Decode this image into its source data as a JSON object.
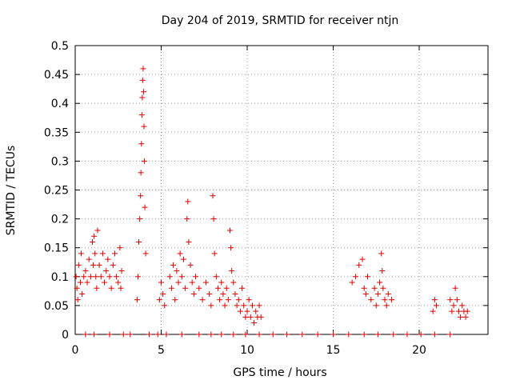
{
  "chart_data": {
    "type": "scatter",
    "title": "Day 204 of 2019, SRMTID for receiver ntjn",
    "xlabel": "GPS time / hours",
    "ylabel": "SRMTID / TECUs",
    "xlim": [
      0,
      24
    ],
    "ylim": [
      0,
      0.5
    ],
    "xticks": [
      "0",
      "5",
      "10",
      "15",
      "20"
    ],
    "yticks": [
      "0",
      "0.05",
      "0.1",
      "0.15",
      "0.2",
      "0.25",
      "0.3",
      "0.35",
      "0.4",
      "0.45",
      "0.5"
    ],
    "grid": true,
    "marker": "+",
    "color": "#e00000",
    "x": [
      0.05,
      0.1,
      0.15,
      0.2,
      0.3,
      0.35,
      0.4,
      0.5,
      0.6,
      0.7,
      0.8,
      0.9,
      1.0,
      1.05,
      1.1,
      1.15,
      1.2,
      1.25,
      1.3,
      1.4,
      1.5,
      1.6,
      1.7,
      1.8,
      1.9,
      2.0,
      2.1,
      2.2,
      2.3,
      2.4,
      2.5,
      2.6,
      2.65,
      2.7,
      3.6,
      3.65,
      3.7,
      3.75,
      3.8,
      3.82,
      3.85,
      3.88,
      3.9,
      3.92,
      3.95,
      3.98,
      4.0,
      4.02,
      4.05,
      4.1,
      4.9,
      5.0,
      5.1,
      5.2,
      5.5,
      5.6,
      5.7,
      5.8,
      5.9,
      6.0,
      6.1,
      6.2,
      6.3,
      6.4,
      6.5,
      6.55,
      6.6,
      6.7,
      6.8,
      6.9,
      7.0,
      7.2,
      7.4,
      7.6,
      7.8,
      7.9,
      8.0,
      8.05,
      8.1,
      8.2,
      8.3,
      8.4,
      8.5,
      8.6,
      8.7,
      8.8,
      8.9,
      9.0,
      9.05,
      9.1,
      9.2,
      9.3,
      9.4,
      9.5,
      9.6,
      9.7,
      9.8,
      9.9,
      10.0,
      10.1,
      10.2,
      10.3,
      10.4,
      10.5,
      10.6,
      10.7,
      10.8,
      16.1,
      16.3,
      16.5,
      16.7,
      16.8,
      16.9,
      17.0,
      17.2,
      17.4,
      17.5,
      17.6,
      17.7,
      17.8,
      17.85,
      17.9,
      18.0,
      18.1,
      18.2,
      18.4,
      20.8,
      20.9,
      21.0,
      21.8,
      21.9,
      22.0,
      22.1,
      22.2,
      22.3,
      22.4,
      22.5,
      22.6,
      22.7,
      22.8,
      0.6,
      1.1,
      2.0,
      2.8,
      3.2,
      4.3,
      4.8,
      5.3,
      6.2,
      7.2,
      7.9,
      8.5,
      9.2,
      9.9,
      10.7,
      11.5,
      12.3,
      13.2,
      14.1,
      15.0,
      15.9,
      16.8,
      17.6,
      18.5,
      19.3,
      20.1,
      20.9,
      21.8
    ],
    "y": [
      0.1,
      0.08,
      0.06,
      0.12,
      0.09,
      0.14,
      0.07,
      0.1,
      0.11,
      0.09,
      0.13,
      0.1,
      0.16,
      0.12,
      0.17,
      0.14,
      0.1,
      0.08,
      0.18,
      0.12,
      0.1,
      0.14,
      0.09,
      0.11,
      0.13,
      0.1,
      0.08,
      0.12,
      0.14,
      0.1,
      0.09,
      0.15,
      0.08,
      0.11,
      0.06,
      0.1,
      0.16,
      0.2,
      0.24,
      0.28,
      0.33,
      0.38,
      0.41,
      0.44,
      0.46,
      0.42,
      0.36,
      0.3,
      0.22,
      0.14,
      0.06,
      0.09,
      0.07,
      0.05,
      0.1,
      0.08,
      0.12,
      0.06,
      0.11,
      0.09,
      0.14,
      0.1,
      0.13,
      0.08,
      0.2,
      0.23,
      0.16,
      0.12,
      0.09,
      0.07,
      0.1,
      0.08,
      0.06,
      0.09,
      0.07,
      0.05,
      0.24,
      0.2,
      0.14,
      0.1,
      0.08,
      0.06,
      0.09,
      0.07,
      0.05,
      0.08,
      0.06,
      0.18,
      0.15,
      0.11,
      0.09,
      0.07,
      0.05,
      0.06,
      0.04,
      0.08,
      0.05,
      0.03,
      0.04,
      0.06,
      0.03,
      0.05,
      0.02,
      0.04,
      0.03,
      0.05,
      0.03,
      0.09,
      0.1,
      0.12,
      0.13,
      0.08,
      0.07,
      0.1,
      0.06,
      0.08,
      0.05,
      0.07,
      0.09,
      0.14,
      0.11,
      0.08,
      0.06,
      0.05,
      0.07,
      0.06,
      0.04,
      0.06,
      0.05,
      0.06,
      0.04,
      0.05,
      0.08,
      0.06,
      0.04,
      0.03,
      0.05,
      0.04,
      0.03,
      0.04,
      0,
      0,
      0,
      0,
      0,
      0,
      0,
      0,
      0,
      0,
      0,
      0,
      0,
      0,
      0,
      0,
      0,
      0,
      0,
      0,
      0,
      0,
      0,
      0,
      0,
      0,
      0,
      0
    ]
  }
}
